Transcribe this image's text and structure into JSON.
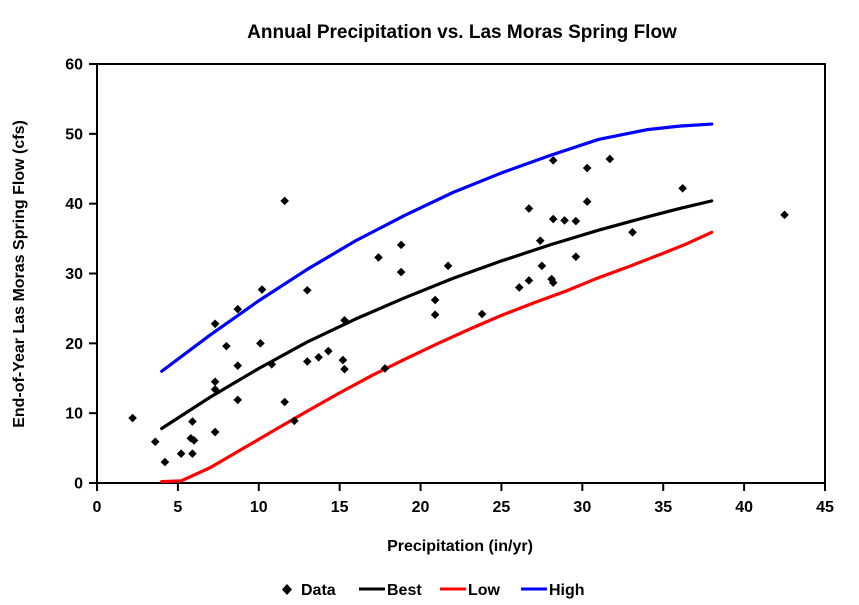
{
  "chart_data": {
    "type": "scatter",
    "title": "Annual Precipitation vs. Las Moras Spring Flow",
    "xlabel": "Precipitation (in/yr)",
    "ylabel": "End-of-Year Las Moras Spring Flow (cfs)",
    "xlim": [
      0,
      45
    ],
    "ylim": [
      0,
      60
    ],
    "xticks": [
      0,
      5,
      10,
      15,
      20,
      25,
      30,
      35,
      40,
      45
    ],
    "yticks": [
      0,
      10,
      20,
      30,
      40,
      50,
      60
    ],
    "grid": false,
    "legend_position": "bottom",
    "scatter": {
      "name": "Data",
      "color": "#000000",
      "marker": "diamond",
      "points": [
        [
          2.2,
          9.3
        ],
        [
          3.6,
          5.9
        ],
        [
          4.2,
          3.0
        ],
        [
          5.2,
          4.2
        ],
        [
          5.9,
          4.2
        ],
        [
          5.8,
          6.4
        ],
        [
          6.0,
          6.1
        ],
        [
          5.9,
          8.8
        ],
        [
          7.3,
          7.3
        ],
        [
          7.3,
          13.4
        ],
        [
          7.3,
          14.5
        ],
        [
          8.7,
          11.9
        ],
        [
          8.7,
          16.8
        ],
        [
          7.3,
          22.8
        ],
        [
          8.0,
          19.6
        ],
        [
          8.7,
          24.9
        ],
        [
          10.1,
          20.0
        ],
        [
          10.2,
          27.7
        ],
        [
          10.8,
          17.0
        ],
        [
          11.6,
          11.6
        ],
        [
          11.6,
          40.4
        ],
        [
          12.2,
          8.9
        ],
        [
          13.0,
          17.4
        ],
        [
          13.0,
          27.6
        ],
        [
          13.7,
          18.0
        ],
        [
          14.3,
          18.9
        ],
        [
          15.2,
          17.6
        ],
        [
          15.3,
          16.3
        ],
        [
          15.3,
          23.3
        ],
        [
          17.4,
          32.3
        ],
        [
          17.8,
          16.4
        ],
        [
          18.8,
          30.2
        ],
        [
          18.8,
          34.1
        ],
        [
          20.9,
          24.1
        ],
        [
          20.9,
          26.2
        ],
        [
          21.7,
          31.1
        ],
        [
          23.8,
          24.2
        ],
        [
          26.1,
          28.0
        ],
        [
          26.7,
          29.0
        ],
        [
          26.7,
          39.3
        ],
        [
          27.4,
          34.7
        ],
        [
          27.5,
          31.1
        ],
        [
          28.1,
          29.2
        ],
        [
          28.2,
          28.7
        ],
        [
          28.2,
          37.8
        ],
        [
          28.2,
          46.2
        ],
        [
          28.9,
          37.6
        ],
        [
          29.6,
          37.5
        ],
        [
          29.6,
          32.4
        ],
        [
          30.3,
          45.1
        ],
        [
          30.3,
          40.3
        ],
        [
          31.7,
          46.4
        ],
        [
          33.1,
          35.9
        ],
        [
          36.2,
          42.2
        ],
        [
          42.5,
          38.4
        ]
      ]
    },
    "series": [
      {
        "name": "Best",
        "color": "#000000",
        "points": [
          [
            4,
            7.8
          ],
          [
            7,
            12.3
          ],
          [
            10,
            16.4
          ],
          [
            13,
            20.2
          ],
          [
            16,
            23.5
          ],
          [
            19,
            26.5
          ],
          [
            22,
            29.3
          ],
          [
            25,
            31.8
          ],
          [
            28,
            34.1
          ],
          [
            31,
            36.2
          ],
          [
            34,
            38.1
          ],
          [
            36,
            39.3
          ],
          [
            38,
            40.4
          ]
        ]
      },
      {
        "name": "Low",
        "color": "#ff0000",
        "points": [
          [
            4,
            0.2
          ],
          [
            5.2,
            0.3
          ],
          [
            7,
            2.2
          ],
          [
            9,
            4.9
          ],
          [
            11,
            7.6
          ],
          [
            13,
            10.3
          ],
          [
            15,
            12.9
          ],
          [
            17,
            15.4
          ],
          [
            19,
            17.7
          ],
          [
            21,
            19.9
          ],
          [
            23,
            22.0
          ],
          [
            25,
            24.0
          ],
          [
            27,
            25.8
          ],
          [
            29,
            27.5
          ],
          [
            31,
            29.4
          ],
          [
            33,
            31.1
          ],
          [
            35,
            32.9
          ],
          [
            36.5,
            34.3
          ],
          [
            38,
            35.9
          ]
        ]
      },
      {
        "name": "High",
        "color": "#0000ff",
        "points": [
          [
            4,
            16.0
          ],
          [
            7,
            21.2
          ],
          [
            10,
            26.1
          ],
          [
            13,
            30.6
          ],
          [
            16,
            34.7
          ],
          [
            19,
            38.3
          ],
          [
            22,
            41.6
          ],
          [
            25,
            44.4
          ],
          [
            28,
            46.9
          ],
          [
            31,
            49.2
          ],
          [
            34,
            50.6
          ],
          [
            36,
            51.1
          ],
          [
            38,
            51.4
          ]
        ]
      }
    ]
  }
}
